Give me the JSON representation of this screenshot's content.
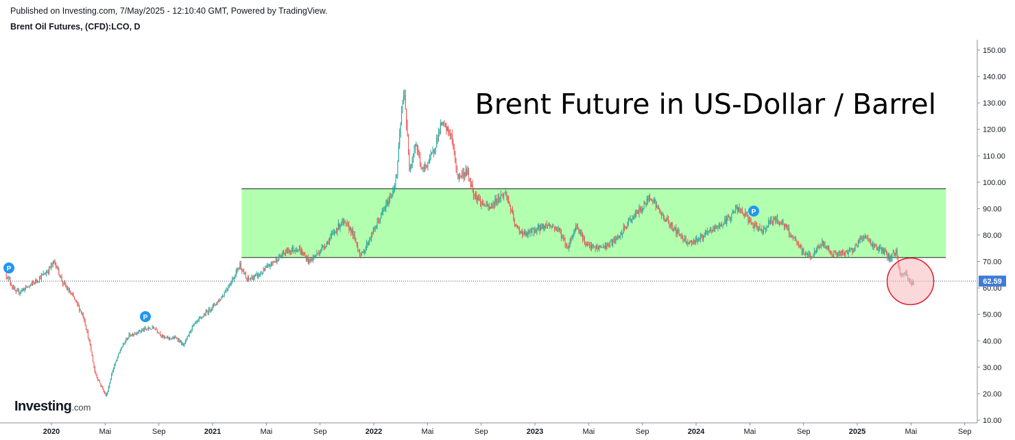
{
  "header": {
    "published": "Published on Investing.com, 7/May/2025 - 12:10:40 GMT, Powered by TradingView.",
    "symbol": "Brent Oil Futures, (CFD):LCO, D"
  },
  "logo": {
    "brand": "Investing",
    "suffix": ".com"
  },
  "colors": {
    "up": "#26a69a",
    "down": "#ef5350",
    "zone_fill": "#b3ffb0",
    "circle_fill": "#f7b9bd",
    "circle_stroke": "#e0192a",
    "price_badge": "#3f7bd8",
    "marker": "#2196f3",
    "grid_axis": "#8a8e99"
  },
  "chart_data": {
    "type": "candlestick",
    "title": "Brent Future in US-Dollar / Barrel",
    "ylim": [
      8,
      153
    ],
    "y_ticks": [
      "150.00",
      "140.00",
      "130.00",
      "120.00",
      "110.00",
      "100.00",
      "90.00",
      "80.00",
      "70.00",
      "60.00",
      "50.00",
      "40.00",
      "30.00",
      "20.00",
      "10.00"
    ],
    "x_ticks": [
      "2020",
      "Mai",
      "Sep",
      "2021",
      "Mai",
      "Sep",
      "2022",
      "Mai",
      "Sep",
      "2023",
      "Mai",
      "Sep",
      "2024",
      "Mai",
      "Sep",
      "2025",
      "Mai",
      "Sep"
    ],
    "x_tick_years": [
      "2020",
      "2021",
      "2022",
      "2023",
      "2024",
      "2025"
    ],
    "last_price": "62.59",
    "series_path": [
      {
        "t": 2019.72,
        "v": 65
      },
      {
        "t": 2019.78,
        "v": 58
      },
      {
        "t": 2019.87,
        "v": 61
      },
      {
        "t": 2019.97,
        "v": 66
      },
      {
        "t": 2020.02,
        "v": 70
      },
      {
        "t": 2020.07,
        "v": 62
      },
      {
        "t": 2020.14,
        "v": 56
      },
      {
        "t": 2020.2,
        "v": 49
      },
      {
        "t": 2020.24,
        "v": 38
      },
      {
        "t": 2020.27,
        "v": 28
      },
      {
        "t": 2020.3,
        "v": 24
      },
      {
        "t": 2020.34,
        "v": 19
      },
      {
        "t": 2020.38,
        "v": 29
      },
      {
        "t": 2020.43,
        "v": 37
      },
      {
        "t": 2020.48,
        "v": 42
      },
      {
        "t": 2020.56,
        "v": 44
      },
      {
        "t": 2020.64,
        "v": 45
      },
      {
        "t": 2020.7,
        "v": 41
      },
      {
        "t": 2020.78,
        "v": 41
      },
      {
        "t": 2020.82,
        "v": 38
      },
      {
        "t": 2020.87,
        "v": 45
      },
      {
        "t": 2020.95,
        "v": 50
      },
      {
        "t": 2021.05,
        "v": 56
      },
      {
        "t": 2021.13,
        "v": 64
      },
      {
        "t": 2021.17,
        "v": 69
      },
      {
        "t": 2021.21,
        "v": 63
      },
      {
        "t": 2021.29,
        "v": 65
      },
      {
        "t": 2021.38,
        "v": 70
      },
      {
        "t": 2021.46,
        "v": 74
      },
      {
        "t": 2021.53,
        "v": 75
      },
      {
        "t": 2021.6,
        "v": 70
      },
      {
        "t": 2021.65,
        "v": 73
      },
      {
        "t": 2021.72,
        "v": 78
      },
      {
        "t": 2021.8,
        "v": 85
      },
      {
        "t": 2021.86,
        "v": 82
      },
      {
        "t": 2021.92,
        "v": 72
      },
      {
        "t": 2021.97,
        "v": 78
      },
      {
        "t": 2022.05,
        "v": 88
      },
      {
        "t": 2022.1,
        "v": 94
      },
      {
        "t": 2022.14,
        "v": 101
      },
      {
        "t": 2022.17,
        "v": 125
      },
      {
        "t": 2022.19,
        "v": 135
      },
      {
        "t": 2022.22,
        "v": 105
      },
      {
        "t": 2022.26,
        "v": 115
      },
      {
        "t": 2022.3,
        "v": 104
      },
      {
        "t": 2022.36,
        "v": 110
      },
      {
        "t": 2022.42,
        "v": 122
      },
      {
        "t": 2022.48,
        "v": 118
      },
      {
        "t": 2022.52,
        "v": 102
      },
      {
        "t": 2022.58,
        "v": 104
      },
      {
        "t": 2022.62,
        "v": 96
      },
      {
        "t": 2022.67,
        "v": 92
      },
      {
        "t": 2022.72,
        "v": 90
      },
      {
        "t": 2022.77,
        "v": 94
      },
      {
        "t": 2022.82,
        "v": 96
      },
      {
        "t": 2022.88,
        "v": 83
      },
      {
        "t": 2022.94,
        "v": 80
      },
      {
        "t": 2023.0,
        "v": 82
      },
      {
        "t": 2023.08,
        "v": 84
      },
      {
        "t": 2023.15,
        "v": 82
      },
      {
        "t": 2023.2,
        "v": 75
      },
      {
        "t": 2023.26,
        "v": 84
      },
      {
        "t": 2023.32,
        "v": 76
      },
      {
        "t": 2023.38,
        "v": 75
      },
      {
        "t": 2023.45,
        "v": 76
      },
      {
        "t": 2023.52,
        "v": 79
      },
      {
        "t": 2023.58,
        "v": 85
      },
      {
        "t": 2023.66,
        "v": 90
      },
      {
        "t": 2023.72,
        "v": 95
      },
      {
        "t": 2023.78,
        "v": 88
      },
      {
        "t": 2023.84,
        "v": 84
      },
      {
        "t": 2023.9,
        "v": 80
      },
      {
        "t": 2023.96,
        "v": 77
      },
      {
        "t": 2024.03,
        "v": 79
      },
      {
        "t": 2024.1,
        "v": 82
      },
      {
        "t": 2024.18,
        "v": 85
      },
      {
        "t": 2024.25,
        "v": 90
      },
      {
        "t": 2024.3,
        "v": 88
      },
      {
        "t": 2024.36,
        "v": 83
      },
      {
        "t": 2024.42,
        "v": 82
      },
      {
        "t": 2024.47,
        "v": 86
      },
      {
        "t": 2024.53,
        "v": 85
      },
      {
        "t": 2024.6,
        "v": 79
      },
      {
        "t": 2024.67,
        "v": 73
      },
      {
        "t": 2024.72,
        "v": 72
      },
      {
        "t": 2024.78,
        "v": 77
      },
      {
        "t": 2024.85,
        "v": 73
      },
      {
        "t": 2024.92,
        "v": 73
      },
      {
        "t": 2024.98,
        "v": 75
      },
      {
        "t": 2025.04,
        "v": 80
      },
      {
        "t": 2025.1,
        "v": 76
      },
      {
        "t": 2025.16,
        "v": 74
      },
      {
        "t": 2025.2,
        "v": 71
      },
      {
        "t": 2025.24,
        "v": 74
      },
      {
        "t": 2025.27,
        "v": 64
      },
      {
        "t": 2025.3,
        "v": 66
      },
      {
        "t": 2025.33,
        "v": 62
      },
      {
        "t": 2025.35,
        "v": 61.5
      }
    ],
    "resistance_zone": {
      "low": 71.5,
      "high": 97.5,
      "x_start": 2021.18,
      "x_end": 2025.55
    },
    "highlight_circle": {
      "t": 2025.33,
      "v": 62.5
    }
  }
}
